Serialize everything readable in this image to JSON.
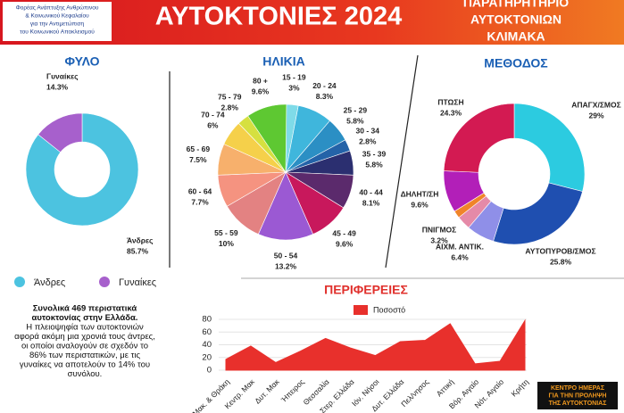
{
  "header": {
    "title": "ΑΥΤΟΚΤΟΝΙΕΣ 2024",
    "logo_lines": [
      "Φορέας Ανάπτυξης Ανθρώπινου",
      "& Κοινωνικού Κεφαλαίου",
      "για την Αντιμετώπιση",
      "του Κοινωνικού Αποκλεισμού"
    ],
    "right_lines": [
      "ΠΑΡΑΤΗΡΗΤΗΡΙΟ",
      "ΑΥΤΟΚΤΟΝΙΩΝ",
      "ΚΛΙΜΑΚΑ"
    ]
  },
  "summary": [
    "Συνολικά 469 περιστατικά",
    "αυτοκτονίας στην Ελλάδα.",
    "Η πλειοψηφία των αυτοκτονιών",
    "αφορά ακόμη μια χρονιά τους άντρες,",
    "οι οποίοι αναλογούν σε σχεδόν το",
    "86% των περιστατικών, με τις",
    "γυναίκες να αποτελούν το 14% του",
    "συνόλου."
  ],
  "badge": [
    "ΚΕΝΤΡΟ ΗΜΕΡΑΣ",
    "ΓΙΑ ΤΗΝ ΠΡΟΛΗΨΗ",
    "ΤΗΣ ΑΥΤΟΚΤΟΝΙΑΣ"
  ],
  "chart_data": [
    {
      "type": "donut",
      "title": "ΦΥΛΟ",
      "categories": [
        "Άνδρες",
        "Γυναίκες"
      ],
      "values": [
        85.7,
        14.3
      ],
      "value_labels": [
        "85.7%",
        "14.3%"
      ],
      "colors": [
        "#4cc3e0",
        "#a760cc"
      ],
      "legend": true
    },
    {
      "type": "pie",
      "title": "ΗΛΙΚΙΑ",
      "categories": [
        "15 - 19",
        "20 - 24",
        "25 - 29",
        "30 - 34",
        "35 - 39",
        "40 - 44",
        "45 - 49",
        "50 - 54",
        "55 - 59",
        "60 - 64",
        "65 - 69",
        "70 - 74",
        "75 - 79",
        "80 +"
      ],
      "values": [
        3,
        8.3,
        5.8,
        2.8,
        5.8,
        8.1,
        9.6,
        13.2,
        10,
        7.7,
        7.5,
        6,
        2.8,
        9.6
      ],
      "value_labels": [
        "3%",
        "8.3%",
        "5.8%",
        "2.8%",
        "5.8%",
        "8.1%",
        "9.6%",
        "13.2%",
        "10%",
        "7.7%",
        "7.5%",
        "6%",
        "2.8%",
        "9.6%"
      ],
      "colors": [
        "#7fdbe8",
        "#3fb6dc",
        "#2b8fc4",
        "#2463a8",
        "#2b2f70",
        "#5b2a6c",
        "#c8185c",
        "#9b59d3",
        "#e38282",
        "#f59380",
        "#f7b06c",
        "#f5d04a",
        "#d6e040",
        "#5ec832"
      ]
    },
    {
      "type": "donut",
      "title": "ΜΕΘΟΔΟΣ",
      "categories": [
        "ΑΠΑΓΧ/ΣΜΟΣ",
        "ΑΥΤΟΠΥΡΟΒ/ΣΜΟΣ",
        "ΑΙΧΜ. ΑΝΤΙΚ.",
        "ΠΝΙΓΜΟΣ",
        null,
        "ΔΗΛΗΤ/ΣΗ",
        "ΠΤΩΣΗ"
      ],
      "values": [
        29,
        25.8,
        6.4,
        3.2,
        1.7,
        9.6,
        24.3
      ],
      "value_labels": [
        "29%",
        "25.8%",
        "6.4%",
        "3.2%",
        null,
        "9.6%",
        "24.3%"
      ],
      "colors": [
        "#2ccbe0",
        "#1f4fb0",
        "#8f8fe8",
        "#e58aa8",
        "#f0842a",
        "#b21fb8",
        "#d31a52"
      ]
    },
    {
      "type": "area",
      "title": "ΠΕΡΙΦΕΡΕΙΕΣ",
      "categories": [
        "Αν. Μακ. & Θράκη",
        "Κεντρ. Μακ",
        "Δυτ. Μακ",
        "Ήπειρος",
        "Θεσσαλία",
        "Στερ. Ελλάδα",
        "Ιόν. Νήσοι",
        "Δυτ. Ελλάδα",
        "Πελ/νησος",
        "Αττική",
        "Βόρ. Αιγαίο",
        "Νότ. Αιγαίο",
        "Κρήτη"
      ],
      "series": [
        {
          "name": "Ποσοστό",
          "color": "#e8302c",
          "values": [
            17,
            38,
            12,
            30,
            50,
            35,
            23,
            45,
            47,
            73,
            10,
            14,
            78
          ]
        }
      ],
      "ylim": [
        0,
        80
      ],
      "yticks": [
        0,
        20,
        40,
        60,
        80
      ],
      "legend": "top"
    }
  ]
}
